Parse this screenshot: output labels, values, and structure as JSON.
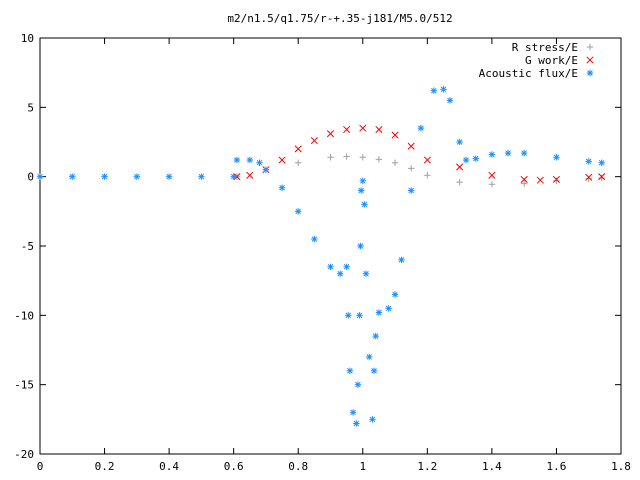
{
  "chart_data": {
    "type": "scatter",
    "title": "m2/n1.5/q1.75/r-+.35-j181/M5.0/512",
    "xlabel": "",
    "ylabel": "",
    "xlim": [
      0,
      1.8
    ],
    "ylim": [
      -20,
      10
    ],
    "xticks": [
      "0",
      "0.2",
      "0.4",
      "0.6",
      "0.8",
      "1",
      "1.2",
      "1.4",
      "1.6",
      "1.8"
    ],
    "yticks": [
      "10",
      "5",
      "0",
      "-5",
      "-10",
      "-15",
      "-20"
    ],
    "grid": false,
    "legend_position": "top-right",
    "series": [
      {
        "name": "R stress/E",
        "marker": "plus",
        "color": "#a0a0a0",
        "points": [
          [
            0.61,
            0
          ],
          [
            0.7,
            0.5
          ],
          [
            0.8,
            1.0
          ],
          [
            0.9,
            1.4
          ],
          [
            0.95,
            1.45
          ],
          [
            1.0,
            1.4
          ],
          [
            1.05,
            1.25
          ],
          [
            1.1,
            1.0
          ],
          [
            1.15,
            0.6
          ],
          [
            1.2,
            0.1
          ],
          [
            1.3,
            -0.4
          ],
          [
            1.4,
            -0.55
          ],
          [
            1.5,
            -0.5
          ],
          [
            1.6,
            -0.3
          ],
          [
            1.7,
            -0.15
          ],
          [
            1.74,
            -0.1
          ]
        ]
      },
      {
        "name": "G work/E",
        "marker": "x",
        "color": "#ff0000",
        "points": [
          [
            0.61,
            0
          ],
          [
            0.65,
            0.1
          ],
          [
            0.7,
            0.5
          ],
          [
            0.75,
            1.2
          ],
          [
            0.8,
            2.0
          ],
          [
            0.85,
            2.6
          ],
          [
            0.9,
            3.1
          ],
          [
            0.95,
            3.4
          ],
          [
            1.0,
            3.5
          ],
          [
            1.05,
            3.4
          ],
          [
            1.1,
            3.0
          ],
          [
            1.15,
            2.2
          ],
          [
            1.2,
            1.2
          ],
          [
            1.3,
            0.7
          ],
          [
            1.4,
            0.1
          ],
          [
            1.5,
            -0.2
          ],
          [
            1.55,
            -0.25
          ],
          [
            1.6,
            -0.2
          ],
          [
            1.7,
            -0.05
          ],
          [
            1.74,
            0
          ]
        ]
      },
      {
        "name": "Acoustic flux/E",
        "marker": "star",
        "color": "#1e90ff",
        "points": [
          [
            0,
            0
          ],
          [
            0.1,
            0
          ],
          [
            0.2,
            0
          ],
          [
            0.3,
            0
          ],
          [
            0.4,
            0
          ],
          [
            0.5,
            0
          ],
          [
            0.6,
            0
          ],
          [
            0.61,
            1.2
          ],
          [
            0.65,
            1.2
          ],
          [
            0.68,
            1.0
          ],
          [
            0.7,
            0.5
          ],
          [
            0.75,
            -0.8
          ],
          [
            0.8,
            -2.5
          ],
          [
            0.85,
            -4.5
          ],
          [
            0.9,
            -6.5
          ],
          [
            0.93,
            -7.0
          ],
          [
            0.95,
            -6.5
          ],
          [
            0.955,
            -10
          ],
          [
            0.96,
            -14
          ],
          [
            0.97,
            -17
          ],
          [
            0.98,
            -17.8
          ],
          [
            0.985,
            -15
          ],
          [
            0.99,
            -10
          ],
          [
            0.993,
            -5
          ],
          [
            0.995,
            -1
          ],
          [
            1.0,
            -0.3
          ],
          [
            1.005,
            -2
          ],
          [
            1.01,
            -7
          ],
          [
            1.02,
            -13
          ],
          [
            1.03,
            -17.5
          ],
          [
            1.035,
            -14
          ],
          [
            1.04,
            -11.5
          ],
          [
            1.05,
            -9.8
          ],
          [
            1.08,
            -9.5
          ],
          [
            1.1,
            -8.5
          ],
          [
            1.12,
            -6
          ],
          [
            1.15,
            -1
          ],
          [
            1.18,
            3.5
          ],
          [
            1.22,
            6.2
          ],
          [
            1.25,
            6.3
          ],
          [
            1.27,
            5.5
          ],
          [
            1.3,
            2.5
          ],
          [
            1.32,
            1.2
          ],
          [
            1.35,
            1.3
          ],
          [
            1.4,
            1.6
          ],
          [
            1.45,
            1.7
          ],
          [
            1.5,
            1.7
          ],
          [
            1.6,
            1.4
          ],
          [
            1.7,
            1.1
          ],
          [
            1.74,
            1.0
          ]
        ]
      }
    ]
  }
}
